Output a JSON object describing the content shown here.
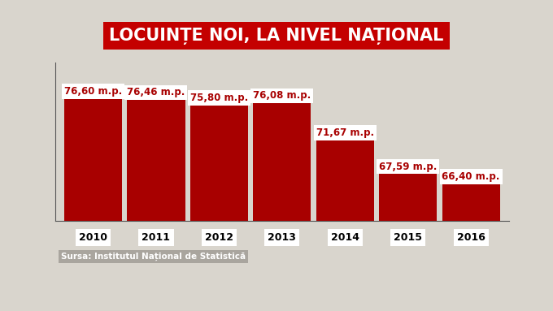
{
  "chart_data": {
    "type": "bar",
    "title": "LOCUINȚE NOI, LA NIVEL NAȚIONAL",
    "categories": [
      "2010",
      "2011",
      "2012",
      "2013",
      "2014",
      "2015",
      "2016"
    ],
    "values": [
      76.6,
      76.46,
      75.8,
      76.08,
      71.67,
      67.59,
      66.4
    ],
    "value_labels": [
      "76,60 m.p.",
      "76,46 m.p.",
      "75,80 m.p.",
      "76,08 m.p.",
      "71,67 m.p.",
      "67,59 m.p.",
      "66,40 m.p."
    ],
    "data_labels": true,
    "color": "#a80000",
    "ylim": [
      61,
      80
    ],
    "tick_labels": "x",
    "grid": false,
    "source": "Sursa: Institutul Național de Statistică"
  }
}
